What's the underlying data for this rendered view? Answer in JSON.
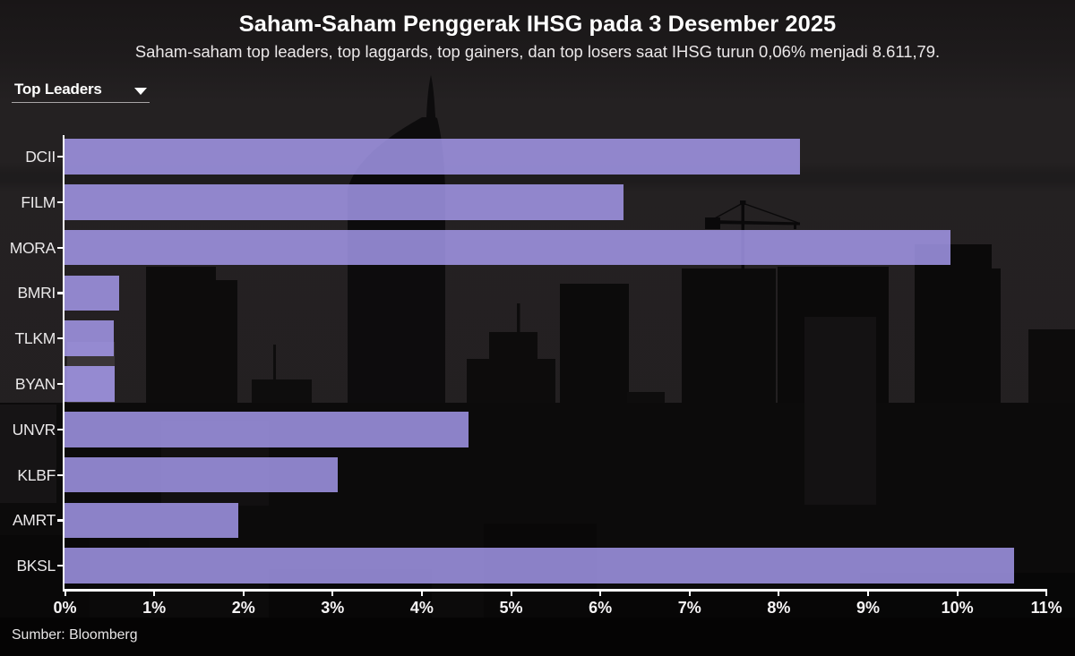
{
  "header": {
    "title": "Saham-Saham Penggerak IHSG pada 3 Desember 2025",
    "subtitle": "Saham-saham top leaders, top laggards, top gainers, dan top losers saat IHSG turun 0,06% menjadi 8.611,79."
  },
  "controls": {
    "dropdown_label": "Top Leaders",
    "dropdown_icon": "caret-down"
  },
  "chart_data": {
    "type": "bar",
    "orientation": "horizontal",
    "title": "Saham-Saham Penggerak IHSG pada 3 Desember 2025",
    "categories": [
      "DCII",
      "FILM",
      "MORA",
      "BMRI",
      "TLKM",
      "BYAN",
      "UNVR",
      "KLBF",
      "AMRT",
      "BKSL"
    ],
    "values": [
      8.24,
      6.26,
      9.92,
      0.61,
      0.55,
      0.56,
      4.52,
      3.06,
      1.94,
      10.64
    ],
    "unit": "%",
    "xlim": [
      0,
      11
    ],
    "x_ticks": [
      "0%",
      "1%",
      "2%",
      "3%",
      "4%",
      "5%",
      "6%",
      "7%",
      "8%",
      "9%",
      "10%",
      "11%"
    ],
    "grid": false,
    "legend": false,
    "bar_color": "#aca0f8",
    "bar_opacity": 0.8,
    "axis_color": "#ffffff"
  },
  "footer": {
    "source": "Sumber: Bloomberg"
  }
}
